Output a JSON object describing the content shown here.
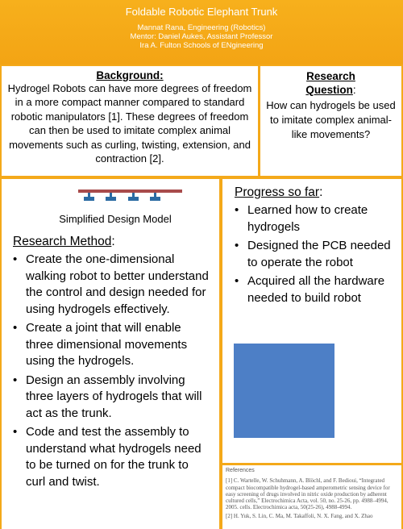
{
  "header": {
    "title": "Foldable Robotic Elephant Trunk",
    "author": "Mannat Rana, Engineering (Robotics)",
    "mentor": "Mentor: Daniel Aukes, Assistant Professor",
    "school": "Ira A. Fulton Schools of ENgineering"
  },
  "background": {
    "heading": "Background:",
    "text": "Hydrogel Robots can have more degrees of freedom in a more compact manner compared to standard robotic manipulators [1]. These degrees of freedom can then be used to imitate complex animal movements such as curling, twisting, extension, and contraction [2]."
  },
  "research_question": {
    "heading_line1": "Research",
    "heading_line2": "Question",
    "colon": ":",
    "text": "How can hydrogels be used to imitate complex animal-like movements?"
  },
  "design_model": {
    "caption": "Simplified Design Model",
    "bar_color": "#a84b4b",
    "actuator_color": "#2b6ba3"
  },
  "research_method": {
    "heading": "Research Method",
    "colon": ":",
    "items": [
      "Create the one-dimensional walking robot to better understand the control and design needed for using hydrogels effectively.",
      "Create a joint that will enable three dimensional movements using the hydrogels.",
      "Design an assembly involving three layers of hydrogels that will act as the trunk.",
      "Code and test the assembly to understand what hydrogels need to be turned on for the trunk to curl and twist."
    ]
  },
  "progress": {
    "heading": "Progress so far",
    "colon": ":",
    "items": [
      "Learned how to create hydrogels",
      "Designed the PCB needed to operate the robot",
      "Acquired all the hardware needed to build robot"
    ],
    "placeholder_color": "#4d7fc6"
  },
  "references": {
    "title": "References",
    "entries": [
      "[1] C. Wartelle, W. Schuhmann, A. Blöchl, and F. Bedioui, “Integrated compact biocompatible hydrogel-based amperometric sensing device for easy screening of drugs involved in nitric oxide production by adherent cultured cells,” Electrochimica Acta, vol. 50, no. 25-26, pp. 4988–4994, 2005. cells. Electrochimica acta, 50(25-26), 4988-4994.",
      "[2] H. Yuk, S. Lin, C. Ma, M. Takaffoli, N. X. Fang, and X. Zhao"
    ]
  },
  "colors": {
    "background": "#f4a91a",
    "panel": "#ffffff"
  }
}
